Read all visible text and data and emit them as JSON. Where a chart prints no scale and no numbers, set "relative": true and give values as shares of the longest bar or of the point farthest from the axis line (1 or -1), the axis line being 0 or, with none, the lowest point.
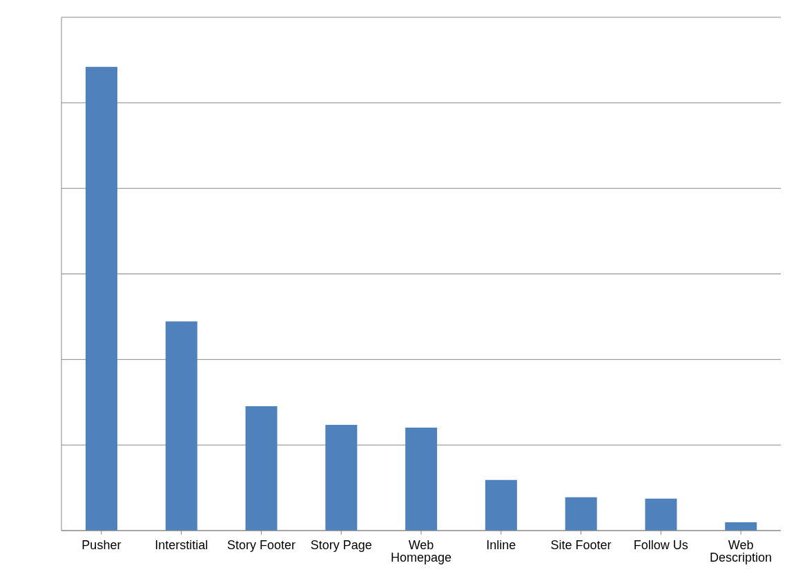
{
  "chart_data": {
    "type": "bar",
    "relative": true,
    "categories": [
      "Pusher",
      "Interstitial",
      "Story Footer",
      "Story Page",
      "Web Homepage",
      "Inline",
      "Site Footer",
      "Follow Us",
      "Web Description"
    ],
    "values": [
      1,
      0.451,
      0.268,
      0.228,
      0.222,
      0.109,
      0.072,
      0.069,
      0.018
    ],
    "color": "#4f81bd",
    "grid": "y",
    "legend": false
  }
}
